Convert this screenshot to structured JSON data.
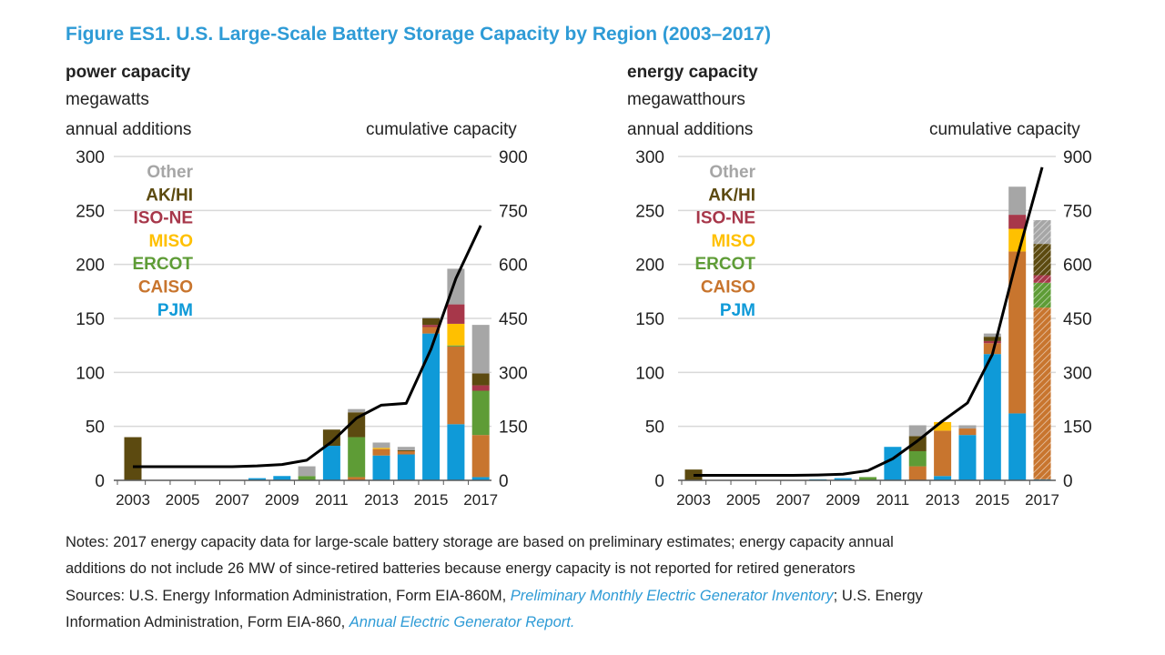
{
  "title": "Figure ES1. U.S. Large-Scale Battery Storage Capacity by Region (2003–2017)",
  "colors": {
    "PJM": "#0f9ad8",
    "CAISO": "#c8752e",
    "ERCOT": "#5e9c36",
    "MISO": "#ffc000",
    "ISO-NE": "#a7374a",
    "AK/HI": "#5c4a10",
    "Other": "#a6a6a6",
    "cumulative": "#000000"
  },
  "chart_data": [
    {
      "type": "bar",
      "stacked": true,
      "title": "power capacity",
      "subtitle": "megawatts",
      "ylabel": "annual additions",
      "y2label": "cumulative capacity",
      "ylim": [
        0,
        300
      ],
      "yticks": [
        0,
        50,
        100,
        150,
        200,
        250,
        300
      ],
      "y2lim": [
        0,
        900
      ],
      "y2ticks": [
        0,
        150,
        300,
        450,
        600,
        750,
        900
      ],
      "grid": true,
      "legend_position": "top-left",
      "categories": [
        2003,
        2004,
        2005,
        2006,
        2007,
        2008,
        2009,
        2010,
        2011,
        2012,
        2013,
        2014,
        2015,
        2016,
        2017
      ],
      "xtick_labels": [
        "2003",
        "2005",
        "2007",
        "2009",
        "2011",
        "2013",
        "2015",
        "2017"
      ],
      "series": [
        {
          "name": "PJM",
          "values": [
            0,
            0,
            0,
            0,
            0,
            2,
            4,
            0,
            32,
            0,
            23,
            24,
            136,
            52,
            3
          ]
        },
        {
          "name": "CAISO",
          "values": [
            0,
            0,
            0,
            0,
            0,
            0,
            0,
            0,
            0,
            3,
            6,
            3,
            6,
            72,
            39
          ]
        },
        {
          "name": "ERCOT",
          "values": [
            0,
            0,
            0,
            0,
            0,
            0,
            0,
            4,
            0,
            37,
            0,
            0,
            0,
            1,
            41
          ]
        },
        {
          "name": "MISO",
          "values": [
            0,
            0,
            0,
            0,
            0,
            0,
            0,
            0,
            0,
            0,
            1,
            0,
            0,
            20,
            0
          ]
        },
        {
          "name": "ISO-NE",
          "values": [
            0,
            0,
            0,
            0,
            0,
            0,
            0,
            0,
            0,
            0,
            0,
            0,
            2,
            18,
            5
          ]
        },
        {
          "name": "AK/HI",
          "values": [
            40,
            0,
            0,
            0,
            0,
            0,
            0,
            0,
            15,
            23,
            0,
            1,
            6,
            0,
            11
          ]
        },
        {
          "name": "Other",
          "values": [
            0,
            0,
            0,
            0,
            0,
            0,
            0,
            9,
            0,
            3,
            5,
            3,
            1,
            33,
            45
          ]
        }
      ],
      "cumulative": [
        38,
        38,
        38,
        38,
        38,
        40,
        44,
        56,
        107,
        173,
        209,
        214,
        365,
        561,
        708
      ]
    },
    {
      "type": "bar",
      "stacked": true,
      "title": "energy capacity",
      "subtitle": "megawatthours",
      "ylabel": "annual additions",
      "y2label": "cumulative capacity",
      "ylim": [
        0,
        300
      ],
      "yticks": [
        0,
        50,
        100,
        150,
        200,
        250,
        300
      ],
      "y2lim": [
        0,
        900
      ],
      "y2ticks": [
        0,
        150,
        300,
        450,
        600,
        750,
        900
      ],
      "grid": true,
      "legend_position": "top-left",
      "preliminary_year": 2017,
      "categories": [
        2003,
        2004,
        2005,
        2006,
        2007,
        2008,
        2009,
        2010,
        2011,
        2012,
        2013,
        2014,
        2015,
        2016,
        2017
      ],
      "xtick_labels": [
        "2003",
        "2005",
        "2007",
        "2009",
        "2011",
        "2013",
        "2015",
        "2017"
      ],
      "series": [
        {
          "name": "PJM",
          "values": [
            0,
            0,
            0,
            0,
            0,
            1,
            2,
            0,
            31,
            0,
            4,
            42,
            117,
            62,
            1
          ]
        },
        {
          "name": "CAISO",
          "values": [
            0,
            0,
            0,
            0,
            0,
            0,
            0,
            0,
            0,
            13,
            42,
            6,
            10,
            150,
            159
          ]
        },
        {
          "name": "ERCOT",
          "values": [
            0,
            0,
            0,
            0,
            0,
            0,
            0,
            3,
            0,
            14,
            0,
            0,
            0,
            0,
            23
          ]
        },
        {
          "name": "MISO",
          "values": [
            0,
            0,
            0,
            0,
            0,
            0,
            0,
            0,
            0,
            0,
            8,
            0,
            0,
            21,
            0
          ]
        },
        {
          "name": "ISO-NE",
          "values": [
            0,
            0,
            0,
            0,
            0,
            0,
            0,
            0,
            0,
            0,
            0,
            0,
            2,
            13,
            7
          ]
        },
        {
          "name": "AK/HI",
          "values": [
            10,
            0,
            0,
            0,
            0,
            0,
            0,
            0,
            0,
            14,
            0,
            0,
            4,
            0,
            29
          ]
        },
        {
          "name": "Other",
          "values": [
            0,
            0,
            0,
            0,
            0,
            0,
            0,
            0,
            0,
            10,
            0,
            3,
            3,
            26,
            22
          ]
        }
      ],
      "cumulative": [
        14,
        14,
        14,
        14,
        14,
        15,
        17,
        27,
        60,
        110,
        165,
        215,
        350,
        620,
        870
      ]
    }
  ],
  "notes": {
    "line1": "Notes: 2017 energy capacity data for large-scale battery storage are based on preliminary estimates; energy capacity annual",
    "line2": "additions do not include 26 MW of since-retired batteries because energy capacity is not reported for retired generators",
    "line3_a": "Sources: U.S. Energy Information Administration, Form EIA-860M, ",
    "line3_link": "Preliminary Monthly Electric Generator Inventory",
    "line3_b": "; U.S. Energy",
    "line4_a": "Information Administration, Form EIA-860, ",
    "line4_link": "Annual Electric Generator Report."
  }
}
